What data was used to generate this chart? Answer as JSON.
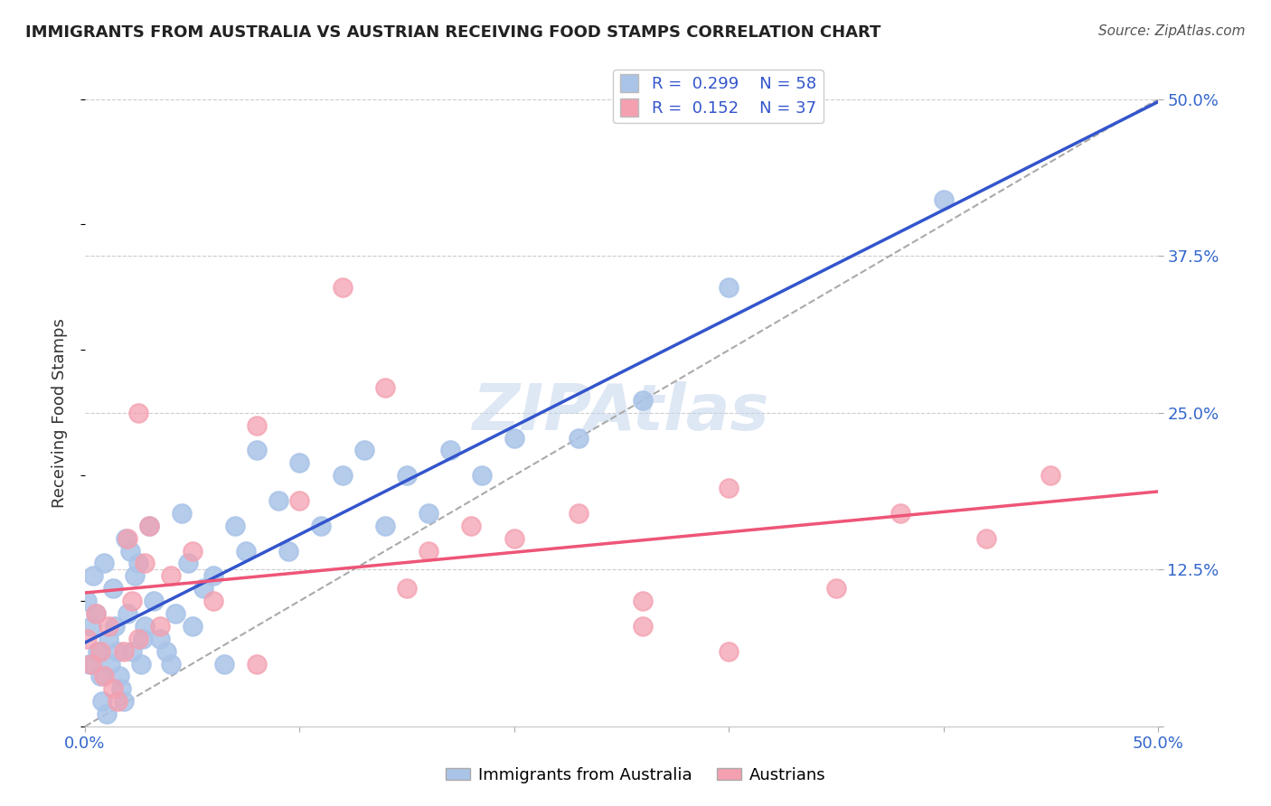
{
  "title": "IMMIGRANTS FROM AUSTRALIA VS AUSTRIAN RECEIVING FOOD STAMPS CORRELATION CHART",
  "source": "Source: ZipAtlas.com",
  "ylabel": "Receiving Food Stamps",
  "xlim": [
    0.0,
    0.5
  ],
  "ylim": [
    0.0,
    0.5
  ],
  "grid_color": "#cccccc",
  "background_color": "#ffffff",
  "australia_color": "#aac4e8",
  "austria_color": "#f4a0b0",
  "australia_line_color": "#3355cc",
  "austria_line_color": "#ee5577",
  "dashed_line_color": "#aaaaaa",
  "legend_R_australia": "0.299",
  "legend_N_australia": "58",
  "legend_R_austria": "0.152",
  "legend_N_austria": "37",
  "australia_x": [
    0.001,
    0.002,
    0.003,
    0.004,
    0.005,
    0.006,
    0.007,
    0.008,
    0.009,
    0.01,
    0.011,
    0.012,
    0.013,
    0.014,
    0.015,
    0.016,
    0.017,
    0.018,
    0.019,
    0.02,
    0.021,
    0.022,
    0.023,
    0.025,
    0.026,
    0.027,
    0.028,
    0.03,
    0.032,
    0.035,
    0.038,
    0.04,
    0.042,
    0.045,
    0.048,
    0.05,
    0.055,
    0.06,
    0.065,
    0.07,
    0.075,
    0.08,
    0.09,
    0.095,
    0.1,
    0.11,
    0.12,
    0.13,
    0.14,
    0.15,
    0.16,
    0.17,
    0.185,
    0.2,
    0.23,
    0.26,
    0.3,
    0.4
  ],
  "australia_y": [
    0.1,
    0.05,
    0.08,
    0.12,
    0.09,
    0.06,
    0.04,
    0.02,
    0.13,
    0.01,
    0.07,
    0.05,
    0.11,
    0.08,
    0.06,
    0.04,
    0.03,
    0.02,
    0.15,
    0.09,
    0.14,
    0.06,
    0.12,
    0.13,
    0.05,
    0.07,
    0.08,
    0.16,
    0.1,
    0.07,
    0.06,
    0.05,
    0.09,
    0.17,
    0.13,
    0.08,
    0.11,
    0.12,
    0.05,
    0.16,
    0.14,
    0.22,
    0.18,
    0.14,
    0.21,
    0.16,
    0.2,
    0.22,
    0.16,
    0.2,
    0.17,
    0.22,
    0.2,
    0.23,
    0.23,
    0.26,
    0.35,
    0.42
  ],
  "austria_x": [
    0.001,
    0.003,
    0.005,
    0.007,
    0.009,
    0.011,
    0.013,
    0.015,
    0.018,
    0.02,
    0.022,
    0.025,
    0.028,
    0.03,
    0.035,
    0.04,
    0.05,
    0.06,
    0.08,
    0.1,
    0.12,
    0.14,
    0.16,
    0.18,
    0.2,
    0.23,
    0.26,
    0.3,
    0.35,
    0.38,
    0.42,
    0.45,
    0.26,
    0.3,
    0.15,
    0.08,
    0.025
  ],
  "austria_y": [
    0.07,
    0.05,
    0.09,
    0.06,
    0.04,
    0.08,
    0.03,
    0.02,
    0.06,
    0.15,
    0.1,
    0.25,
    0.13,
    0.16,
    0.08,
    0.12,
    0.14,
    0.1,
    0.24,
    0.18,
    0.35,
    0.27,
    0.14,
    0.16,
    0.15,
    0.17,
    0.1,
    0.19,
    0.11,
    0.17,
    0.15,
    0.2,
    0.08,
    0.06,
    0.11,
    0.05,
    0.07
  ]
}
